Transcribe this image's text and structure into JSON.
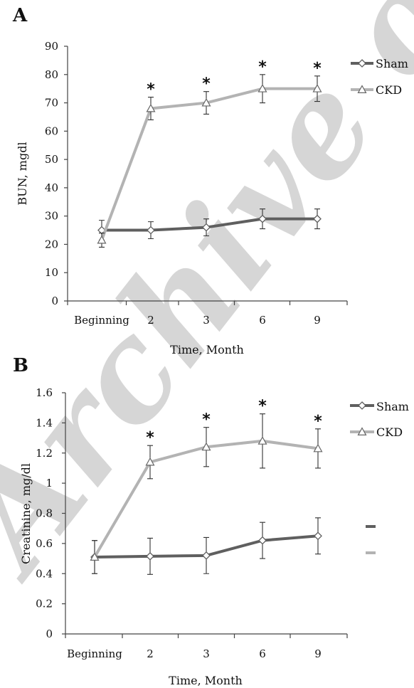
{
  "watermark": "Archive of SID",
  "colors": {
    "sham": "#5f5f5f",
    "ckd": "#b3b3b3"
  },
  "chart_data": [
    {
      "panel": "A",
      "type": "line",
      "xlabel": "Time, Month",
      "ylabel": "BUN, mgdl",
      "categories": [
        "Beginning",
        "2",
        "3",
        "6",
        "9"
      ],
      "ylim": [
        0,
        90
      ],
      "yticks": [
        "0",
        "10",
        "20",
        "30",
        "40",
        "50",
        "60",
        "70",
        "80",
        "90"
      ],
      "legend_position": "top-right",
      "grid": false,
      "series": [
        {
          "name": "Sham",
          "marker": "diamond",
          "values": [
            25,
            25,
            26,
            29,
            29
          ],
          "errors": [
            3.5,
            3,
            3,
            3.5,
            3.5
          ]
        },
        {
          "name": "CKD",
          "marker": "triangle",
          "values": [
            21.5,
            68,
            70,
            75,
            75
          ],
          "errors": [
            2.5,
            4,
            4,
            5,
            4.5
          ]
        }
      ],
      "significance_marks": [
        "",
        "*",
        "*",
        "*",
        "*"
      ]
    },
    {
      "panel": "B",
      "type": "line",
      "xlabel": "Time, Month",
      "ylabel": "Creatinine, mg/dl",
      "categories": [
        "Beginning",
        "2",
        "3",
        "6",
        "9"
      ],
      "ylim": [
        0,
        1.6
      ],
      "yticks": [
        "0",
        "0.2",
        "0.4",
        "0.6",
        "0.8",
        "1",
        "1.2",
        "1.4",
        "1.6"
      ],
      "legend_position": "top-right",
      "grid": false,
      "series": [
        {
          "name": "Sham",
          "marker": "diamond",
          "values": [
            0.51,
            0.515,
            0.52,
            0.62,
            0.65
          ],
          "errors": [
            0.11,
            0.12,
            0.12,
            0.12,
            0.12
          ]
        },
        {
          "name": "CKD",
          "marker": "triangle",
          "values": [
            0.51,
            1.14,
            1.24,
            1.28,
            1.23
          ],
          "errors": [
            0.11,
            0.11,
            0.13,
            0.18,
            0.13
          ]
        }
      ],
      "significance_marks": [
        "",
        "*",
        "*",
        "*",
        "*"
      ]
    }
  ]
}
